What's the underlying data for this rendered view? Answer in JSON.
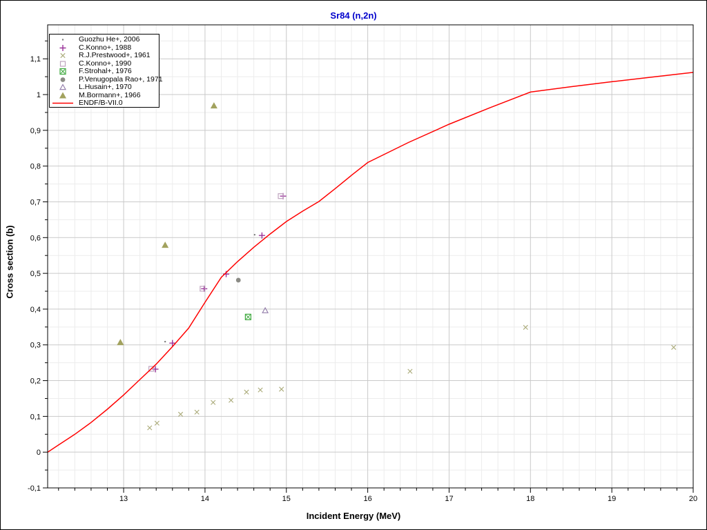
{
  "window": {
    "background": "#ffffff",
    "frame_color": "#000000"
  },
  "chart_data": {
    "type": "scatter",
    "title": "Sr84 (n,2n)",
    "title_color": "#0000cc",
    "xlabel": "Incident Energy (MeV)",
    "ylabel": "Cross section (b)",
    "xlim": [
      12.066,
      20.0
    ],
    "ylim": [
      -0.1,
      1.195
    ],
    "x_ticks": {
      "values": [
        13,
        14,
        15,
        16,
        17,
        18,
        19,
        20
      ],
      "labels": [
        "13",
        "14",
        "15",
        "16",
        "17",
        "18",
        "19",
        "20"
      ]
    },
    "y_ticks": {
      "values": [
        -0.1,
        0,
        0.1,
        0.2,
        0.3,
        0.4,
        0.5,
        0.6,
        0.7,
        0.8,
        0.9,
        1,
        1.1
      ],
      "labels": [
        "-0,1",
        "0",
        "0,1",
        "0,2",
        "0,3",
        "0,4",
        "0,5",
        "0,6",
        "0,7",
        "0,8",
        "0,9",
        "1",
        "1,1"
      ]
    },
    "x_minor_step": 0.2,
    "y_minor_step": 0.05,
    "grid": {
      "major_color": "#c9c9c9",
      "minor_color": "#ececec",
      "on": true
    },
    "legend_position": "top-left",
    "series": [
      {
        "name": "Guozhu He+, 2006",
        "marker": "dot",
        "color": "#7a7a7a",
        "points": [
          [
            13.51,
            0.309
          ],
          [
            14.61,
            0.608
          ]
        ]
      },
      {
        "name": "C.Konno+, 1988",
        "marker": "plus",
        "color": "#993399",
        "points": [
          [
            13.39,
            0.232
          ],
          [
            13.6,
            0.305
          ],
          [
            13.99,
            0.457
          ],
          [
            14.26,
            0.498
          ],
          [
            14.7,
            0.606
          ],
          [
            14.96,
            0.716
          ]
        ]
      },
      {
        "name": "R.J.Prestwood+, 1961",
        "marker": "x",
        "color": "#aaaa78",
        "points": [
          [
            13.32,
            0.068
          ],
          [
            13.41,
            0.081
          ],
          [
            13.7,
            0.106
          ],
          [
            13.9,
            0.112
          ],
          [
            14.1,
            0.139
          ],
          [
            14.32,
            0.145
          ],
          [
            14.51,
            0.168
          ],
          [
            14.68,
            0.174
          ],
          [
            14.94,
            0.176
          ],
          [
            16.52,
            0.226
          ],
          [
            17.94,
            0.349
          ],
          [
            19.76,
            0.293
          ]
        ]
      },
      {
        "name": "C.Konno+, 1990",
        "marker": "square",
        "color": "#bfa4bf",
        "points": [
          [
            13.34,
            0.233
          ],
          [
            13.97,
            0.457
          ],
          [
            14.93,
            0.716
          ]
        ]
      },
      {
        "name": "F.Strohal+, 1976",
        "marker": "xsquare",
        "color": "#3aa73a",
        "points": [
          [
            14.53,
            0.378
          ]
        ]
      },
      {
        "name": "P.Venugopala Rao+, 1971",
        "marker": "circle",
        "color": "#8b8b85",
        "points": [
          [
            14.41,
            0.481
          ]
        ]
      },
      {
        "name": "L.Husain+, 1970",
        "marker": "triangle-open",
        "color": "#9079a8",
        "points": [
          [
            14.74,
            0.396
          ]
        ]
      },
      {
        "name": "M.Bormann+, 1966",
        "marker": "triangle-filled",
        "color": "#a2a25e",
        "points": [
          [
            12.96,
            0.307
          ],
          [
            13.51,
            0.579
          ],
          [
            14.11,
            0.969
          ]
        ]
      },
      {
        "name": "ENDF/B-VII.0",
        "marker": "line",
        "color": "#ff0000",
        "points": [
          [
            12.066,
            0.0
          ],
          [
            12.2,
            0.02
          ],
          [
            12.4,
            0.05
          ],
          [
            12.6,
            0.083
          ],
          [
            12.8,
            0.12
          ],
          [
            13.0,
            0.16
          ],
          [
            13.2,
            0.203
          ],
          [
            13.4,
            0.246
          ],
          [
            13.6,
            0.295
          ],
          [
            13.8,
            0.347
          ],
          [
            14.0,
            0.419
          ],
          [
            14.2,
            0.489
          ],
          [
            14.4,
            0.533
          ],
          [
            14.6,
            0.573
          ],
          [
            14.8,
            0.61
          ],
          [
            15.0,
            0.645
          ],
          [
            15.2,
            0.674
          ],
          [
            15.4,
            0.701
          ],
          [
            15.6,
            0.737
          ],
          [
            15.8,
            0.774
          ],
          [
            16.0,
            0.81
          ],
          [
            16.5,
            0.866
          ],
          [
            17.0,
            0.917
          ],
          [
            17.5,
            0.963
          ],
          [
            18.0,
            1.007
          ],
          [
            18.5,
            1.022
          ],
          [
            19.0,
            1.036
          ],
          [
            19.5,
            1.049
          ],
          [
            20.0,
            1.062
          ]
        ]
      }
    ]
  }
}
